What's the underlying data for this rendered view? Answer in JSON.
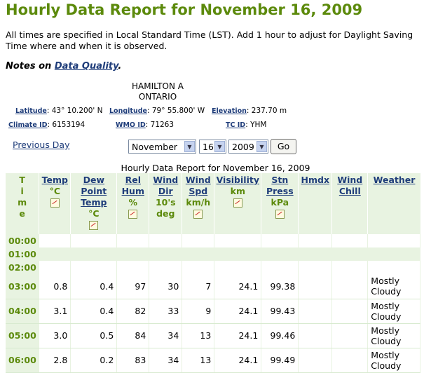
{
  "title": "Hourly Data Report for November 16, 2009",
  "intro": "All times are specified in Local Standard Time (LST). Add 1 hour to adjust for Daylight Saving Time where and when it is observed.",
  "notes": {
    "prefix": "Notes on ",
    "link": "Data Quality",
    "suffix": "."
  },
  "station": {
    "name": "HAMILTON A",
    "province": "ONTARIO",
    "latitude_label": "Latitude",
    "latitude": "43° 10.200' N",
    "longitude_label": "Longitude",
    "longitude": "79° 55.800' W",
    "elevation_label": "Elevation",
    "elevation": "237.70 m",
    "climate_id_label": "Climate ID",
    "climate_id": "6153194",
    "wmo_id_label": "WMO ID",
    "wmo_id": "71263",
    "tc_id_label": "TC ID",
    "tc_id": "YHM"
  },
  "nav": {
    "previous_day": "Previous Day",
    "month": "November",
    "day": "16",
    "year": "2009",
    "go": "Go"
  },
  "caption": "Hourly Data Report for November 16, 2009",
  "headers": {
    "time": [
      "T",
      "i",
      "m",
      "e"
    ],
    "temp": "Temp",
    "temp_unit": "°C",
    "dew": "Dew Point Temp",
    "dew_unit": "°C",
    "rel": "Rel Hum",
    "rel_unit": "%",
    "wdir": "Wind Dir",
    "wdir_unit": "10's deg",
    "wspd": "Wind Spd",
    "wspd_unit": "km/h",
    "vis": "Visibility",
    "vis_unit": "km",
    "press": "Stn Press",
    "press_unit": "kPa",
    "hmdx": "Hmdx",
    "chill": "Wind Chill",
    "weather": "Weather"
  },
  "rows": [
    {
      "time": "00:00",
      "temp": "",
      "dew": "",
      "rel": "",
      "wdir": "",
      "wspd": "",
      "vis": "",
      "press": "",
      "hmdx": "",
      "chill": "",
      "weather": ""
    },
    {
      "time": "01:00",
      "temp": "",
      "dew": "",
      "rel": "",
      "wdir": "",
      "wspd": "",
      "vis": "",
      "press": "",
      "hmdx": "",
      "chill": "",
      "weather": ""
    },
    {
      "time": "02:00",
      "temp": "",
      "dew": "",
      "rel": "",
      "wdir": "",
      "wspd": "",
      "vis": "",
      "press": "",
      "hmdx": "",
      "chill": "",
      "weather": ""
    },
    {
      "time": "03:00",
      "temp": "0.8",
      "dew": "0.4",
      "rel": "97",
      "wdir": "30",
      "wspd": "7",
      "vis": "24.1",
      "press": "99.38",
      "hmdx": "",
      "chill": "",
      "weather": "Mostly Cloudy"
    },
    {
      "time": "04:00",
      "temp": "3.1",
      "dew": "0.4",
      "rel": "82",
      "wdir": "33",
      "wspd": "9",
      "vis": "24.1",
      "press": "99.43",
      "hmdx": "",
      "chill": "",
      "weather": "Mostly Cloudy"
    },
    {
      "time": "05:00",
      "temp": "3.0",
      "dew": "0.5",
      "rel": "84",
      "wdir": "34",
      "wspd": "13",
      "vis": "24.1",
      "press": "99.46",
      "hmdx": "",
      "chill": "",
      "weather": "Mostly Cloudy"
    },
    {
      "time": "06:00",
      "temp": "2.8",
      "dew": "0.2",
      "rel": "83",
      "wdir": "34",
      "wspd": "13",
      "vis": "24.1",
      "press": "99.49",
      "hmdx": "",
      "chill": "",
      "weather": "Mostly Cloudy"
    }
  ]
}
